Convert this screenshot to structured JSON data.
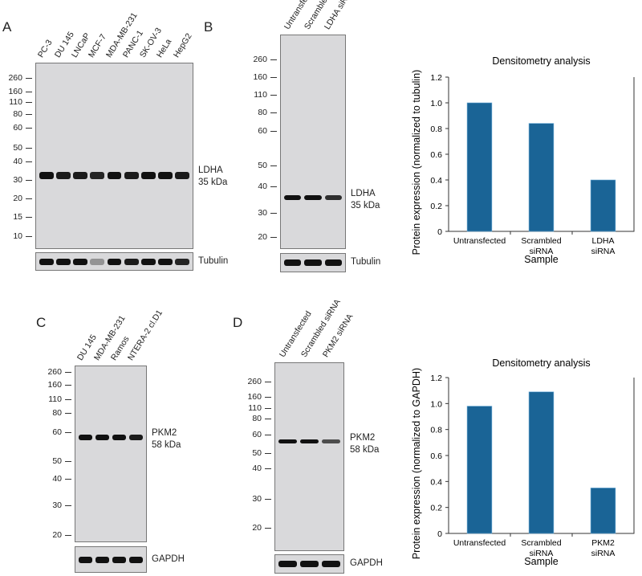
{
  "panels": {
    "A": {
      "letter": "A",
      "lanes": [
        "PC-3",
        "DU 145",
        "LNCaP",
        "MCF-7",
        "MDA-MB-231",
        "PANC-1",
        "SK-OV-3",
        "HeLa",
        "HepG2"
      ],
      "markers": [
        "260",
        "160",
        "110",
        "80",
        "60",
        "50",
        "40",
        "30",
        "20",
        "15",
        "10"
      ],
      "target": "LDHA",
      "target_size": "35 kDa",
      "loading_control": "Tubulin"
    },
    "B": {
      "letter": "B",
      "lanes": [
        "Untransfected",
        "Scrambled siRNA",
        "LDHA siRNA"
      ],
      "markers": [
        "260",
        "160",
        "110",
        "80",
        "60",
        "50",
        "40",
        "30",
        "20"
      ],
      "target": "LDHA",
      "target_size": "35 kDa",
      "loading_control": "Tubulin"
    },
    "C": {
      "letter": "C",
      "lanes": [
        "DU 145",
        "MDA-MB-231",
        "Ramos",
        "NTERA-2 cl.D1"
      ],
      "markers": [
        "260",
        "160",
        "110",
        "80",
        "60",
        "50",
        "40",
        "30",
        "20"
      ],
      "target": "PKM2",
      "target_size": "58 kDa",
      "loading_control": "GAPDH"
    },
    "D": {
      "letter": "D",
      "lanes": [
        "Untransfected",
        "Scrambled siRNA",
        "PKM2 siRNA"
      ],
      "markers": [
        "260",
        "160",
        "110",
        "80",
        "60",
        "50",
        "40",
        "30",
        "20"
      ],
      "target": "PKM2",
      "target_size": "58 kDa",
      "loading_control": "GAPDH"
    }
  },
  "chart_data": [
    {
      "type": "bar",
      "title": "Densitometry analysis",
      "xlabel": "Sample",
      "ylabel": "Protein expression (normalized to tubulin)",
      "categories": [
        "Untransfected",
        "Scrambled siRNA",
        "LDHA siRNA"
      ],
      "category_lines": [
        [
          "Untransfected"
        ],
        [
          "Scrambled",
          "siRNA"
        ],
        [
          "LDHA",
          "siRNA"
        ]
      ],
      "values": [
        1.0,
        0.84,
        0.4
      ],
      "ylim": [
        0,
        1.2
      ],
      "yticks": [
        "0",
        "0.2",
        "0.4",
        "0.6",
        "0.8",
        "1.0",
        "1.2"
      ],
      "grid": false,
      "color": "#1a6496"
    },
    {
      "type": "bar",
      "title": "Densitometry analysis",
      "xlabel": "Sample",
      "ylabel": "Protein expression (normalized to GAPDH)",
      "categories": [
        "Untransfected",
        "Scrambled siRNA",
        "PKM2 siRNA"
      ],
      "category_lines": [
        [
          "Untransfected"
        ],
        [
          "Scrambled",
          "siRNA"
        ],
        [
          "PKM2",
          "siRNA"
        ]
      ],
      "values": [
        0.98,
        1.09,
        0.35
      ],
      "ylim": [
        0,
        1.2
      ],
      "yticks": [
        "0",
        "0.2",
        "0.4",
        "0.6",
        "0.8",
        "1.0",
        "1.2"
      ],
      "grid": false,
      "color": "#1a6496"
    }
  ]
}
